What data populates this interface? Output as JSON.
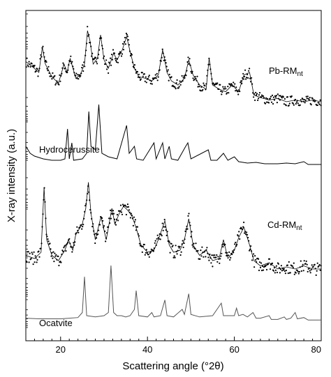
{
  "chart_data": {
    "type": "line",
    "xlabel": "Scattering angle (°2θ)",
    "ylabel": "X-ray intensity (a.u.)",
    "xlim": [
      12,
      80
    ],
    "x_ticks": [
      "20",
      "40",
      "60",
      "80"
    ],
    "grid": false,
    "series": [
      {
        "name": "Pb-RMnt",
        "style": "points",
        "color": "#000000",
        "points": [
          [
            12,
            0.58
          ],
          [
            13.5,
            0.52
          ],
          [
            15,
            0.45
          ],
          [
            15.8,
            0.75
          ],
          [
            16.5,
            0.55
          ],
          [
            18,
            0.4
          ],
          [
            19.5,
            0.32
          ],
          [
            20.8,
            0.55
          ],
          [
            21.5,
            0.45
          ],
          [
            22.2,
            0.62
          ],
          [
            23.5,
            0.38
          ],
          [
            24.5,
            0.42
          ],
          [
            25.5,
            0.55
          ],
          [
            26.2,
            0.95
          ],
          [
            26.8,
            0.82
          ],
          [
            27.5,
            0.55
          ],
          [
            28.5,
            0.62
          ],
          [
            29.2,
            0.9
          ],
          [
            30,
            0.6
          ],
          [
            31,
            0.5
          ],
          [
            32.2,
            0.68
          ],
          [
            33,
            0.6
          ],
          [
            34.2,
            0.72
          ],
          [
            35.2,
            0.88
          ],
          [
            36,
            0.7
          ],
          [
            37,
            0.5
          ],
          [
            38,
            0.4
          ],
          [
            39.5,
            0.38
          ],
          [
            41,
            0.35
          ],
          [
            42.5,
            0.42
          ],
          [
            43.5,
            0.72
          ],
          [
            44.5,
            0.45
          ],
          [
            45.5,
            0.35
          ],
          [
            47,
            0.3
          ],
          [
            48.5,
            0.38
          ],
          [
            49.5,
            0.6
          ],
          [
            50.5,
            0.42
          ],
          [
            52,
            0.3
          ],
          [
            53.5,
            0.25
          ],
          [
            54.2,
            0.62
          ],
          [
            55,
            0.3
          ],
          [
            56.5,
            0.25
          ],
          [
            58,
            0.22
          ],
          [
            59.5,
            0.3
          ],
          [
            61,
            0.22
          ],
          [
            62.2,
            0.42
          ],
          [
            63.5,
            0.45
          ],
          [
            64.5,
            0.18
          ],
          [
            66,
            0.15
          ],
          [
            68,
            0.12
          ],
          [
            70,
            0.14
          ],
          [
            72,
            0.1
          ],
          [
            74,
            0.12
          ],
          [
            76,
            0.1
          ],
          [
            78,
            0.12
          ],
          [
            80,
            0.1
          ]
        ]
      },
      {
        "name": "Hydrocerussite",
        "style": "line",
        "color": "#000000",
        "points": [
          [
            12,
            0.3
          ],
          [
            13,
            0.2
          ],
          [
            14,
            0.16
          ],
          [
            16,
            0.12
          ],
          [
            18,
            0.1
          ],
          [
            20,
            0.1
          ],
          [
            21,
            0.12
          ],
          [
            21.6,
            0.55
          ],
          [
            22,
            0.12
          ],
          [
            22.6,
            0.35
          ],
          [
            23,
            0.1
          ],
          [
            25,
            0.12
          ],
          [
            26,
            0.2
          ],
          [
            26.5,
            0.8
          ],
          [
            27,
            0.3
          ],
          [
            28,
            0.25
          ],
          [
            28.8,
            0.9
          ],
          [
            29.5,
            0.2
          ],
          [
            31,
            0.15
          ],
          [
            33,
            0.12
          ],
          [
            34.5,
            0.45
          ],
          [
            35.2,
            0.6
          ],
          [
            35.8,
            0.2
          ],
          [
            37,
            0.3
          ],
          [
            37.5,
            0.12
          ],
          [
            39,
            0.1
          ],
          [
            41.5,
            0.35
          ],
          [
            42,
            0.12
          ],
          [
            43.5,
            0.35
          ],
          [
            44,
            0.12
          ],
          [
            45,
            0.3
          ],
          [
            45.5,
            0.12
          ],
          [
            47,
            0.1
          ],
          [
            48.8,
            0.3
          ],
          [
            49.3,
            0.35
          ],
          [
            50,
            0.12
          ],
          [
            54,
            0.25
          ],
          [
            54.6,
            0.1
          ],
          [
            56,
            0.1
          ],
          [
            57.5,
            0.2
          ],
          [
            58.5,
            0.1
          ],
          [
            60,
            0.15
          ],
          [
            61,
            0.08
          ],
          [
            63,
            0.06
          ],
          [
            65,
            0.07
          ],
          [
            67,
            0.05
          ],
          [
            70,
            0.05
          ],
          [
            72,
            0.06
          ],
          [
            74,
            0.05
          ],
          [
            76,
            0.08
          ],
          [
            77,
            0.04
          ],
          [
            80,
            0.04
          ]
        ]
      },
      {
        "name": "Cd-RMnt",
        "style": "points",
        "color": "#000000",
        "points": [
          [
            12,
            0.25
          ],
          [
            14,
            0.22
          ],
          [
            15.5,
            0.28
          ],
          [
            16.2,
            0.9
          ],
          [
            16.8,
            0.4
          ],
          [
            18,
            0.25
          ],
          [
            19.5,
            0.2
          ],
          [
            21,
            0.3
          ],
          [
            21.8,
            0.4
          ],
          [
            22.8,
            0.3
          ],
          [
            23.5,
            0.45
          ],
          [
            25,
            0.55
          ],
          [
            25.8,
            0.7
          ],
          [
            26.4,
            0.95
          ],
          [
            27,
            0.65
          ],
          [
            28,
            0.4
          ],
          [
            29.3,
            0.62
          ],
          [
            30.5,
            0.4
          ],
          [
            31.8,
            0.7
          ],
          [
            32.5,
            0.55
          ],
          [
            33.5,
            0.65
          ],
          [
            34.5,
            0.72
          ],
          [
            35.5,
            0.68
          ],
          [
            36.5,
            0.62
          ],
          [
            37.5,
            0.5
          ],
          [
            38.5,
            0.35
          ],
          [
            40,
            0.28
          ],
          [
            41.5,
            0.3
          ],
          [
            42.5,
            0.4
          ],
          [
            44,
            0.58
          ],
          [
            45,
            0.35
          ],
          [
            46,
            0.28
          ],
          [
            47.5,
            0.3
          ],
          [
            48.5,
            0.4
          ],
          [
            49.5,
            0.6
          ],
          [
            50.5,
            0.35
          ],
          [
            52,
            0.25
          ],
          [
            53.5,
            0.3
          ],
          [
            55,
            0.2
          ],
          [
            56.5,
            0.22
          ],
          [
            57.5,
            0.4
          ],
          [
            58.5,
            0.22
          ],
          [
            60,
            0.3
          ],
          [
            61,
            0.42
          ],
          [
            62.2,
            0.52
          ],
          [
            63.5,
            0.35
          ],
          [
            64.5,
            0.2
          ],
          [
            66,
            0.15
          ],
          [
            68,
            0.18
          ],
          [
            70,
            0.12
          ],
          [
            72,
            0.14
          ],
          [
            74,
            0.12
          ],
          [
            76,
            0.15
          ],
          [
            78,
            0.12
          ],
          [
            80,
            0.12
          ]
        ]
      },
      {
        "name": "Ocatvite",
        "style": "line",
        "color": "#555555",
        "points": [
          [
            12,
            0.06
          ],
          [
            15,
            0.05
          ],
          [
            18,
            0.05
          ],
          [
            20,
            0.05
          ],
          [
            22,
            0.06
          ],
          [
            24,
            0.07
          ],
          [
            25,
            0.15
          ],
          [
            25.5,
            0.72
          ],
          [
            26,
            0.1
          ],
          [
            28,
            0.08
          ],
          [
            30,
            0.1
          ],
          [
            31,
            0.15
          ],
          [
            31.6,
            0.9
          ],
          [
            32.2,
            0.15
          ],
          [
            33,
            0.1
          ],
          [
            34,
            0.1
          ],
          [
            35,
            0.08
          ],
          [
            36,
            0.1
          ],
          [
            37,
            0.2
          ],
          [
            37.4,
            0.5
          ],
          [
            38,
            0.1
          ],
          [
            40,
            0.08
          ],
          [
            41,
            0.15
          ],
          [
            41.5,
            0.08
          ],
          [
            43,
            0.1
          ],
          [
            44,
            0.35
          ],
          [
            44.5,
            0.1
          ],
          [
            46,
            0.08
          ],
          [
            48,
            0.2
          ],
          [
            48.5,
            0.12
          ],
          [
            49.5,
            0.45
          ],
          [
            50,
            0.12
          ],
          [
            52,
            0.08
          ],
          [
            55,
            0.1
          ],
          [
            57,
            0.3
          ],
          [
            57.5,
            0.1
          ],
          [
            60,
            0.1
          ],
          [
            60.5,
            0.22
          ],
          [
            61,
            0.1
          ],
          [
            62,
            0.12
          ],
          [
            63,
            0.08
          ],
          [
            64.3,
            0.15
          ],
          [
            65,
            0.06
          ],
          [
            66,
            0.06
          ],
          [
            68,
            0.1
          ],
          [
            68.5,
            0.04
          ],
          [
            70,
            0.04
          ],
          [
            71.5,
            0.08
          ],
          [
            72,
            0.04
          ],
          [
            73,
            0.06
          ],
          [
            74,
            0.15
          ],
          [
            74.5,
            0.05
          ],
          [
            76,
            0.07
          ],
          [
            77,
            0.03
          ],
          [
            80,
            0.03
          ]
        ]
      }
    ]
  },
  "labels": {
    "pb": "Pb-RM",
    "pb_sub": "nt",
    "hydro": "Hydrocerussite",
    "cd": "Cd-RM",
    "cd_sub": "nt",
    "oct": "Ocatvite"
  }
}
